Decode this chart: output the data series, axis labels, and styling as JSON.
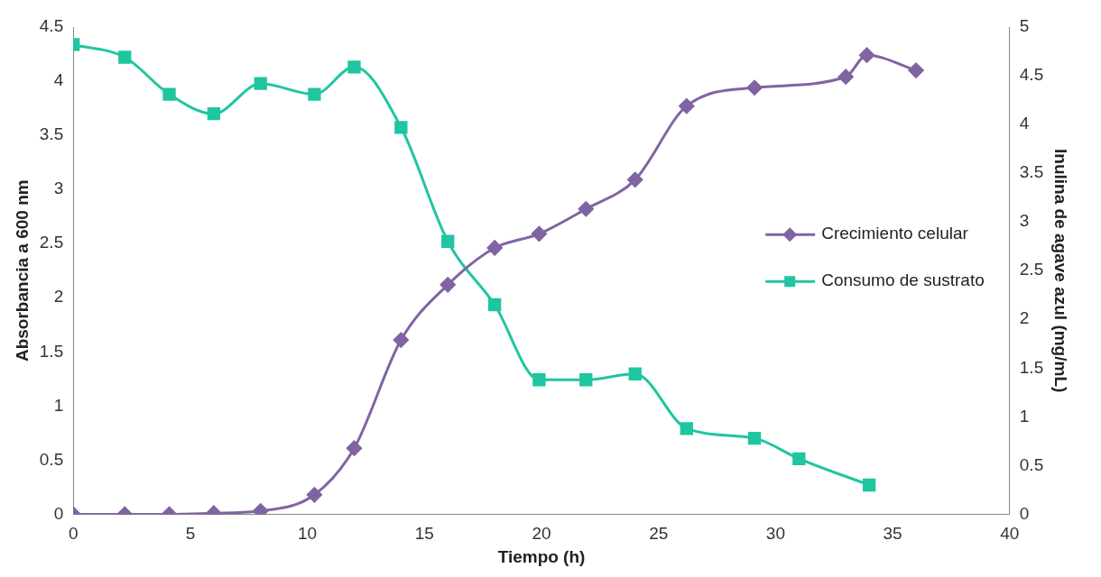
{
  "chart_data": {
    "type": "line",
    "xlabel": "Tiempo (h)",
    "ylabel": "Absorbancia a 600 nm",
    "y2label": "Inulina de agave azul (mg/mL)",
    "xlim": [
      0,
      40
    ],
    "xticks": [
      0,
      5,
      10,
      15,
      20,
      25,
      30,
      35,
      40
    ],
    "ylim": [
      0,
      4.5
    ],
    "yticks": [
      0,
      0.5,
      1,
      1.5,
      2,
      2.5,
      3,
      3.5,
      4,
      4.5
    ],
    "y2lim": [
      0,
      5
    ],
    "y2ticks": [
      0,
      0.5,
      1,
      1.5,
      2,
      2.5,
      3,
      3.5,
      4,
      4.5,
      5
    ],
    "grid": false,
    "legend": "right",
    "series": [
      {
        "name": "Crecimiento celular",
        "color": "#8064a2",
        "marker": "diamond",
        "axis": "y",
        "x": [
          0,
          2.2,
          4.1,
          6,
          8,
          10.3,
          12,
          14,
          16,
          18,
          19.9,
          21.9,
          24,
          26.2,
          29.1,
          33,
          33.9,
          36
        ],
        "values": [
          0,
          0,
          0,
          0.01,
          0.03,
          0.18,
          0.61,
          1.61,
          2.12,
          2.46,
          2.59,
          2.82,
          3.09,
          3.77,
          3.94,
          4.04,
          4.24,
          4.1
        ]
      },
      {
        "name": "Consumo de sustrato",
        "color": "#1fc6a0",
        "marker": "square",
        "axis": "y2",
        "x": [
          0,
          2.2,
          4.1,
          6,
          8,
          10.3,
          12,
          14,
          16,
          18,
          19.9,
          21.9,
          24,
          26.2,
          29.1,
          31,
          34
        ],
        "values": [
          4.82,
          4.69,
          4.31,
          4.11,
          4.42,
          4.31,
          4.59,
          3.97,
          2.8,
          2.15,
          1.38,
          1.38,
          1.44,
          0.88,
          0.78,
          0.57,
          0.3
        ]
      }
    ]
  }
}
